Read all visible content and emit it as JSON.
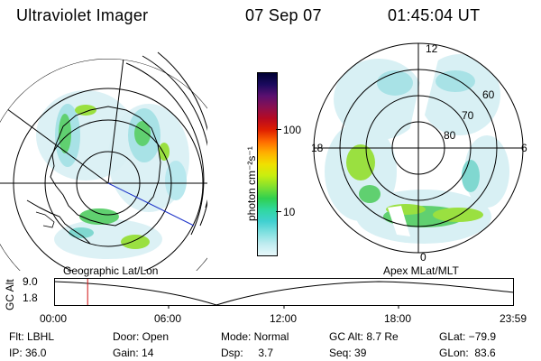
{
  "header": {
    "instrument": "Ultraviolet Imager",
    "date": "07 Sep 07",
    "time": "01:45:04 UT"
  },
  "colorbar": {
    "unit_label": "photon cm⁻²s⁻¹",
    "ticks": [
      "100",
      "10"
    ],
    "colors": [
      "#000033",
      "#1a0a5e",
      "#5a1070",
      "#8a1050",
      "#b80a20",
      "#e02000",
      "#ff6a00",
      "#ffb000",
      "#f0e000",
      "#c8ee10",
      "#80e030",
      "#30d050",
      "#30d8a0",
      "#40d0d0",
      "#80e0e0",
      "#c0ecf0",
      "#e8f8fb"
    ]
  },
  "left_panel": {
    "caption": "Geographic Lat/Lon"
  },
  "right_panel": {
    "caption": "Apex  MLat/MLT",
    "labels": {
      "top": "12",
      "left": "18",
      "right": "6",
      "bottom": "0",
      "lat60": "60",
      "lat70": "70",
      "lat80": "80"
    }
  },
  "timeline": {
    "axis_label": "GC Alt",
    "y_ticks": [
      "9.0",
      "1.8"
    ],
    "x_ticks": [
      "00:00",
      "06:00",
      "12:00",
      "18:00",
      "23:59"
    ],
    "current_fraction": 0.073
  },
  "status": {
    "filter": "Flt: LBHL",
    "ip": "IP: 36.0",
    "door": "Door: Open",
    "gain": "Gain: 14",
    "mode": "Mode: Normal",
    "dsp": "Dsp:     3.7",
    "gcalt": "GC Alt: 8.7 Re",
    "seq": "Seq: 39",
    "glat": "GLat: −79.9",
    "glon": "GLon:  83.6"
  }
}
